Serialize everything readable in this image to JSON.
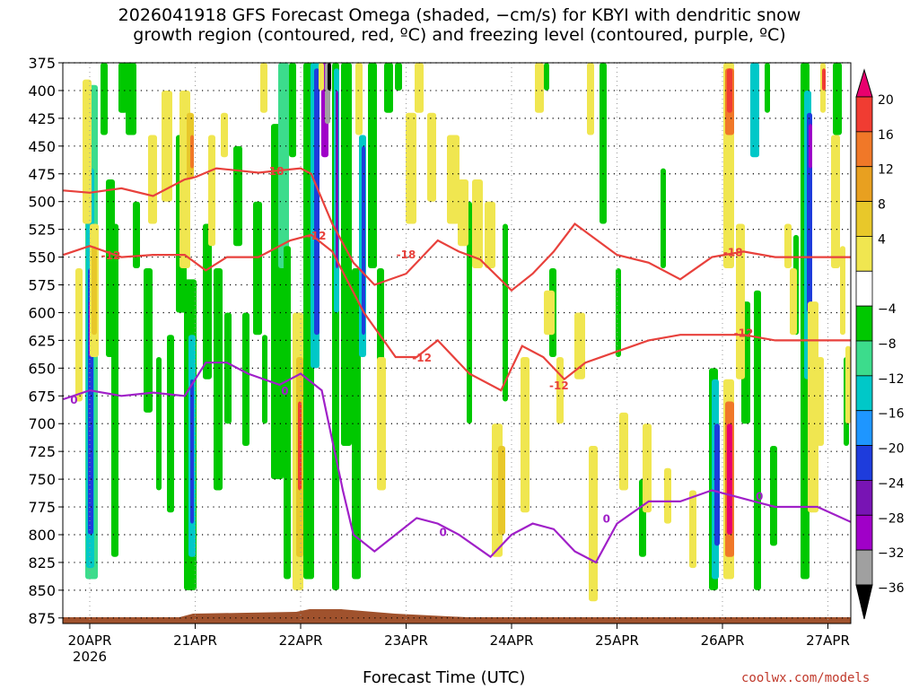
{
  "title_line1": "2026041918 GFS Forecast Omega (shaded, −cm/s) for KBYI with dendritic snow",
  "title_line2": "growth region (contoured, red, ºC) and freezing level (contoured, purple, ºC)",
  "chart_data": {
    "type": "heatmap",
    "xlabel": "Forecast Time (UTC)",
    "x_ticks": [
      "20APR",
      "21APR",
      "22APR",
      "23APR",
      "24APR",
      "25APR",
      "26APR",
      "27APR"
    ],
    "x_year": "2026",
    "y_ticks": [
      375,
      400,
      425,
      450,
      475,
      500,
      525,
      550,
      575,
      600,
      625,
      650,
      675,
      700,
      725,
      750,
      775,
      800,
      825,
      850,
      875
    ],
    "ylim": [
      375,
      880
    ],
    "xlim_days": [
      -0.25,
      7.25
    ],
    "grid": true,
    "colorbar": {
      "labels": [
        "20",
        "16",
        "12",
        "8",
        "4",
        "−4",
        "−8",
        "−12",
        "−16",
        "−20",
        "−24",
        "−28",
        "−32",
        "−36"
      ],
      "colors": [
        "#e8006e",
        "#f03c32",
        "#f07828",
        "#e8a020",
        "#e8c82a",
        "#f0e650",
        "#ffffff",
        "#00c800",
        "#3cdc8c",
        "#00c8c8",
        "#1e96ff",
        "#1e3cdc",
        "#7814b4",
        "#a000c8",
        "#a0a0a0",
        "#000000"
      ]
    },
    "contours": [
      {
        "label": "-18",
        "color": "#e8413c",
        "x": [
          -0.25,
          0,
          0.3,
          0.6,
          0.9,
          1.0,
          1.2,
          1.6,
          1.8,
          2.0,
          2.1,
          2.3,
          2.5,
          2.7,
          3.0,
          3.3,
          3.5,
          3.7,
          4.0,
          4.2,
          4.4,
          4.6,
          5.0,
          5.3,
          5.6,
          5.9,
          6.2,
          6.5,
          6.9,
          7.25
        ],
        "y": [
          490,
          492,
          488,
          495,
          480,
          478,
          470,
          474,
          472,
          470,
          475,
          520,
          555,
          575,
          565,
          535,
          545,
          552,
          580,
          565,
          545,
          520,
          548,
          555,
          570,
          550,
          545,
          550,
          550,
          550
        ],
        "labels_at": [
          [
            1.75,
            472
          ],
          [
            3.0,
            547
          ],
          [
            6.1,
            545
          ]
        ]
      },
      {
        "label": "-12",
        "color": "#e8413c",
        "x": [
          -0.25,
          0,
          0.3,
          0.6,
          0.9,
          1.1,
          1.3,
          1.6,
          1.9,
          2.1,
          2.3,
          2.6,
          2.9,
          3.1,
          3.3,
          3.6,
          3.9,
          4.1,
          4.3,
          4.5,
          4.7,
          5.0,
          5.3,
          5.6,
          5.9,
          6.2,
          6.5,
          6.9,
          7.25
        ],
        "y": [
          548,
          540,
          550,
          548,
          548,
          562,
          550,
          550,
          535,
          530,
          545,
          600,
          640,
          640,
          625,
          655,
          670,
          630,
          640,
          660,
          645,
          635,
          625,
          620,
          620,
          620,
          625,
          625,
          625
        ],
        "labels_at": [
          [
            0.2,
            548
          ],
          [
            2.15,
            530
          ],
          [
            3.15,
            640
          ],
          [
            4.45,
            665
          ],
          [
            6.2,
            618
          ]
        ]
      },
      {
        "label": "0",
        "color": "#a020c8",
        "x": [
          -0.25,
          0,
          0.3,
          0.6,
          0.9,
          1.1,
          1.3,
          1.5,
          1.8,
          2.0,
          2.2,
          2.4,
          2.5,
          2.7,
          2.9,
          3.1,
          3.3,
          3.5,
          3.8,
          4.0,
          4.2,
          4.4,
          4.6,
          4.8,
          5.0,
          5.3,
          5.6,
          5.9,
          6.1,
          6.3,
          6.5,
          6.9,
          7.25
        ],
        "y": [
          678,
          670,
          675,
          672,
          675,
          645,
          645,
          655,
          665,
          655,
          670,
          760,
          800,
          815,
          800,
          785,
          790,
          800,
          820,
          800,
          790,
          795,
          815,
          825,
          790,
          770,
          770,
          760,
          765,
          770,
          775,
          775,
          790
        ],
        "labels_at": [
          [
            -0.15,
            678
          ],
          [
            1.85,
            670
          ],
          [
            3.35,
            797
          ],
          [
            4.9,
            785
          ],
          [
            6.35,
            765
          ]
        ]
      }
    ]
  },
  "credit": "coolwx.com/models"
}
